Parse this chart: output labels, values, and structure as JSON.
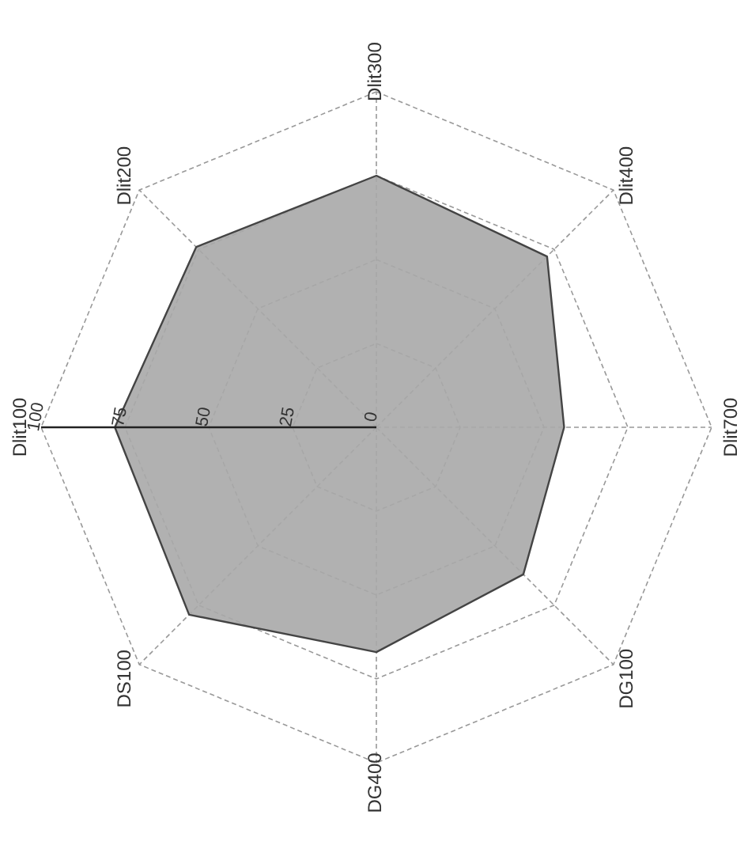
{
  "chart_data": {
    "type": "radar",
    "categories": [
      "Dlit300",
      "Dlit400",
      "Dlit700",
      "DG100",
      "DG400",
      "DS100",
      "Dlit100",
      "Dlit200"
    ],
    "series": [
      {
        "color": "#a9a9a9",
        "values": [
          75,
          72,
          56,
          62,
          67,
          79,
          78,
          76
        ]
      }
    ],
    "ylim": [
      0,
      100
    ],
    "yticks": [
      0,
      25,
      50,
      75,
      100
    ],
    "grid": true,
    "marker": "none"
  }
}
